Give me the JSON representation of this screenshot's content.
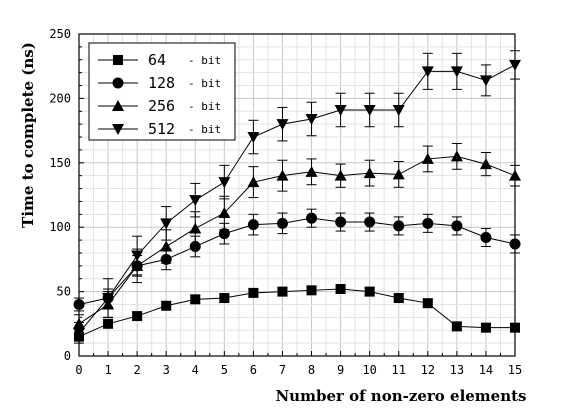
{
  "chart_data": {
    "type": "line",
    "title": "",
    "xlabel": "Number of non-zero elements",
    "ylabel": "Time to complete (ns)",
    "x": [
      0,
      1,
      2,
      3,
      4,
      5,
      6,
      7,
      8,
      9,
      10,
      11,
      12,
      13,
      14,
      15
    ],
    "xlim": [
      0,
      15
    ],
    "ylim": [
      0,
      250
    ],
    "xticks": [
      "0",
      "1",
      "2",
      "3",
      "4",
      "5",
      "6",
      "7",
      "8",
      "9",
      "10",
      "11",
      "12",
      "13",
      "14",
      "15"
    ],
    "yticks": [
      "0",
      "50",
      "100",
      "150",
      "200",
      "250"
    ],
    "grid": true,
    "error_bars": true,
    "legend": {
      "position": "top-left",
      "suffix": "- bit"
    },
    "series": [
      {
        "name": "64",
        "marker": "square",
        "values": [
          15,
          25,
          31,
          39,
          44,
          45,
          49,
          50,
          51,
          52,
          50,
          45,
          41,
          23,
          22,
          22
        ],
        "errors": [
          3,
          3,
          3,
          3,
          3,
          3,
          3,
          3,
          3,
          3,
          3,
          3,
          3,
          3,
          3,
          3
        ]
      },
      {
        "name": "128",
        "marker": "circle",
        "values": [
          40,
          45,
          70,
          75,
          85,
          95,
          102,
          103,
          107,
          104,
          104,
          101,
          103,
          101,
          92,
          87
        ],
        "errors": [
          5,
          7,
          8,
          8,
          8,
          8,
          8,
          8,
          7,
          7,
          7,
          7,
          7,
          7,
          7,
          7
        ]
      },
      {
        "name": "256",
        "marker": "triangle-up",
        "values": [
          25,
          40,
          70,
          85,
          99,
          111,
          135,
          140,
          143,
          140,
          142,
          141,
          153,
          155,
          149,
          140
        ],
        "errors": [
          7,
          10,
          13,
          13,
          13,
          13,
          12,
          12,
          10,
          9,
          10,
          10,
          10,
          10,
          9,
          8
        ]
      },
      {
        "name": "512",
        "marker": "triangle-down",
        "values": [
          18,
          45,
          78,
          103,
          121,
          135,
          170,
          180,
          184,
          191,
          191,
          191,
          221,
          221,
          214,
          226
        ],
        "errors": [
          8,
          15,
          15,
          13,
          13,
          13,
          13,
          13,
          13,
          13,
          13,
          13,
          14,
          14,
          12,
          11
        ]
      }
    ]
  }
}
